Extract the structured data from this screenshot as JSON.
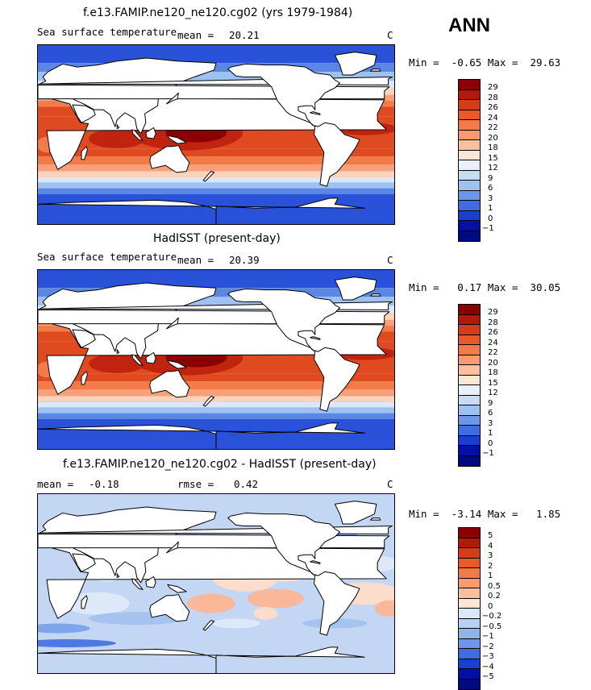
{
  "season": "ANN",
  "panels": [
    {
      "title": "f.e13.FAMIP.ne120_ne120.cg02 (yrs 1979-1984)",
      "variable": "Sea surface temperature",
      "stat1_label": "mean =",
      "stat1_value": "20.21",
      "units": "C",
      "minmax": "Min =  -0.65 Max =  29.63",
      "levels": [
        "29",
        "28",
        "26",
        "24",
        "22",
        "20",
        "18",
        "15",
        "12",
        "9",
        "6",
        "3",
        "1",
        "0",
        "-1"
      ],
      "colors": [
        "#8b0000",
        "#b2180b",
        "#d43d1a",
        "#e85a28",
        "#f47a48",
        "#f89c6f",
        "#fbbf9c",
        "#fde6d5",
        "#e8f1fb",
        "#c8dcf5",
        "#9fc1ef",
        "#6d98e8",
        "#3d6de0",
        "#1a3fd0",
        "#0010a8",
        "#000a80"
      ],
      "map_palette": [
        "#8b0000",
        "#c0240f",
        "#e04a20",
        "#f47a48",
        "#f8a07a",
        "#fcd2bc",
        "#dbe8fa",
        "#9fc1ef",
        "#5a86e6",
        "#2a52d8"
      ]
    },
    {
      "title": "HadISST (present-day)",
      "variable": "Sea surface temperature",
      "stat1_label": "mean =",
      "stat1_value": "20.39",
      "units": "C",
      "minmax": "Min =   0.17 Max =  30.05",
      "levels": [
        "29",
        "28",
        "26",
        "24",
        "22",
        "20",
        "18",
        "15",
        "12",
        "9",
        "6",
        "3",
        "1",
        "0",
        "-1"
      ],
      "colors": [
        "#8b0000",
        "#b2180b",
        "#d43d1a",
        "#e85a28",
        "#f47a48",
        "#f89c6f",
        "#fbbf9c",
        "#fde6d5",
        "#e8f1fb",
        "#c8dcf5",
        "#9fc1ef",
        "#6d98e8",
        "#3d6de0",
        "#1a3fd0",
        "#0010a8",
        "#000a80"
      ],
      "map_palette": [
        "#8b0000",
        "#c0240f",
        "#e04a20",
        "#f47a48",
        "#f8a07a",
        "#fcd2bc",
        "#dbe8fa",
        "#9fc1ef",
        "#5a86e6",
        "#2a52d8"
      ]
    },
    {
      "title": "f.e13.FAMIP.ne120_ne120.cg02 - HadISST (present-day)",
      "stat1_label": "mean =",
      "stat1_value": "-0.18",
      "stat2_label": "rmse =",
      "stat2_value": "0.42",
      "units": "C",
      "minmax": "Min =  -3.14 Max =   1.85",
      "levels": [
        "5",
        "4",
        "3",
        "2",
        "1",
        "0.5",
        "0.2",
        "0",
        "-0.2",
        "-0.5",
        "-1",
        "-2",
        "-3",
        "-4",
        "-5"
      ],
      "colors": [
        "#8b0000",
        "#b2180b",
        "#d43d1a",
        "#e85a28",
        "#f47a48",
        "#f89c6f",
        "#fbbf9c",
        "#fde6d5",
        "#dbe8fa",
        "#b8d0f2",
        "#8fb3ec",
        "#6d98e8",
        "#3d6de0",
        "#1a3fd0",
        "#0010a8",
        "#000a80"
      ],
      "map_palette": [
        "#f9b89a",
        "#fcdccb",
        "#dde8f8",
        "#c3d6f3",
        "#a6c2ef",
        "#7ea5ea",
        "#4d79e1"
      ]
    }
  ]
}
